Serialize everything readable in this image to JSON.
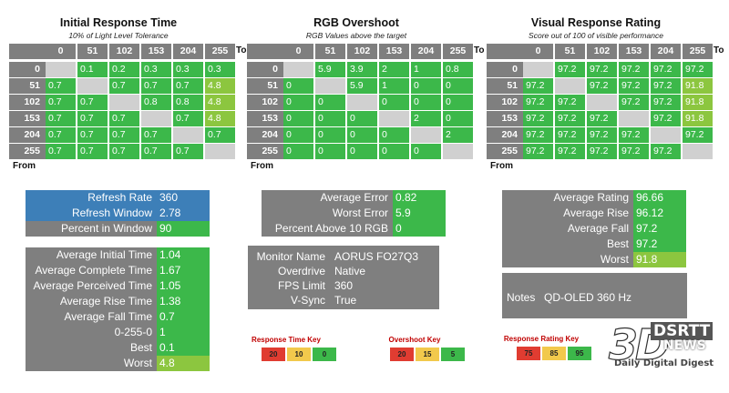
{
  "colors": {
    "header_gray": "#7f7f7f",
    "green": "#3cb84a",
    "lime": "#8cc63f",
    "empty": "#d0d0d0",
    "blue": "#3d7fb8",
    "panel_gray": "#7f7f7f",
    "key_red": "#e03c31",
    "key_yellow": "#f2c94c",
    "key_green": "#3cb84a"
  },
  "grids": [
    {
      "title": "Initial Response Time",
      "subtitle": "10% of Light Level Tolerance",
      "to_label": "To",
      "from_label": "From",
      "cols": [
        "0",
        "51",
        "102",
        "153",
        "204",
        "255"
      ],
      "rows": [
        "0",
        "51",
        "102",
        "153",
        "204",
        "255"
      ],
      "values": [
        [
          "",
          "0.1",
          "0.2",
          "0.3",
          "0.3",
          "0.3"
        ],
        [
          "0.7",
          "",
          "0.7",
          "0.7",
          "0.7",
          "4.8"
        ],
        [
          "0.7",
          "0.7",
          "",
          "0.8",
          "0.8",
          "4.8"
        ],
        [
          "0.7",
          "0.7",
          "0.7",
          "",
          "0.7",
          "4.8"
        ],
        [
          "0.7",
          "0.7",
          "0.7",
          "0.7",
          "",
          "0.7"
        ],
        [
          "0.7",
          "0.7",
          "0.7",
          "0.7",
          "0.7",
          ""
        ]
      ],
      "colors": [
        [
          "e",
          "g",
          "g",
          "g",
          "g",
          "g"
        ],
        [
          "g",
          "e",
          "g",
          "g",
          "g",
          "l"
        ],
        [
          "g",
          "g",
          "e",
          "g",
          "g",
          "l"
        ],
        [
          "g",
          "g",
          "g",
          "e",
          "g",
          "l"
        ],
        [
          "g",
          "g",
          "g",
          "g",
          "e",
          "g"
        ],
        [
          "g",
          "g",
          "g",
          "g",
          "g",
          "e"
        ]
      ]
    },
    {
      "title": "RGB Overshoot",
      "subtitle": "RGB Values above the target",
      "to_label": "To",
      "from_label": "From",
      "cols": [
        "0",
        "51",
        "102",
        "153",
        "204",
        "255"
      ],
      "rows": [
        "0",
        "51",
        "102",
        "153",
        "204",
        "255"
      ],
      "values": [
        [
          "",
          "5.9",
          "3.9",
          "2",
          "1",
          "0.8"
        ],
        [
          "0",
          "",
          "5.9",
          "1",
          "0",
          "0"
        ],
        [
          "0",
          "0",
          "",
          "0",
          "0",
          "0"
        ],
        [
          "0",
          "0",
          "0",
          "",
          "2",
          "0"
        ],
        [
          "0",
          "0",
          "0",
          "0",
          "",
          "2"
        ],
        [
          "0",
          "0",
          "0",
          "0",
          "0",
          ""
        ]
      ],
      "colors": [
        [
          "e",
          "g",
          "g",
          "g",
          "g",
          "g"
        ],
        [
          "g",
          "e",
          "g",
          "g",
          "g",
          "g"
        ],
        [
          "g",
          "g",
          "e",
          "g",
          "g",
          "g"
        ],
        [
          "g",
          "g",
          "g",
          "e",
          "g",
          "g"
        ],
        [
          "g",
          "g",
          "g",
          "g",
          "e",
          "g"
        ],
        [
          "g",
          "g",
          "g",
          "g",
          "g",
          "e"
        ]
      ]
    },
    {
      "title": "Visual Response Rating",
      "subtitle": "Score out of 100 of visible performance",
      "to_label": "To",
      "from_label": "From",
      "cols": [
        "0",
        "51",
        "102",
        "153",
        "204",
        "255"
      ],
      "rows": [
        "0",
        "51",
        "102",
        "153",
        "204",
        "255"
      ],
      "values": [
        [
          "",
          "97.2",
          "97.2",
          "97.2",
          "97.2",
          "97.2"
        ],
        [
          "97.2",
          "",
          "97.2",
          "97.2",
          "97.2",
          "91.8"
        ],
        [
          "97.2",
          "97.2",
          "",
          "97.2",
          "97.2",
          "91.8"
        ],
        [
          "97.2",
          "97.2",
          "97.2",
          "",
          "97.2",
          "91.8"
        ],
        [
          "97.2",
          "97.2",
          "97.2",
          "97.2",
          "",
          "97.2"
        ],
        [
          "97.2",
          "97.2",
          "97.2",
          "97.2",
          "97.2",
          ""
        ]
      ],
      "colors": [
        [
          "e",
          "g",
          "g",
          "g",
          "g",
          "g"
        ],
        [
          "g",
          "e",
          "g",
          "g",
          "g",
          "l"
        ],
        [
          "g",
          "g",
          "e",
          "g",
          "g",
          "l"
        ],
        [
          "g",
          "g",
          "g",
          "e",
          "g",
          "l"
        ],
        [
          "g",
          "g",
          "g",
          "g",
          "e",
          "g"
        ],
        [
          "g",
          "g",
          "g",
          "g",
          "g",
          "e"
        ]
      ]
    }
  ],
  "refresh_panel": [
    {
      "label": "Refresh Rate",
      "value": "360",
      "label_color": "blue",
      "value_color": "blue"
    },
    {
      "label": "Refresh Window",
      "value": "2.78",
      "label_color": "blue",
      "value_color": "blue"
    },
    {
      "label": "Percent in Window",
      "value": "90",
      "label_color": "gray",
      "value_color": "green"
    }
  ],
  "response_panel": [
    {
      "label": "Average Initial Time",
      "value": "1.04",
      "value_color": "green"
    },
    {
      "label": "Average Complete Time",
      "value": "1.67",
      "value_color": "green"
    },
    {
      "label": "Average Perceived Time",
      "value": "1.05",
      "value_color": "green"
    },
    {
      "label": "Average Rise Time",
      "value": "1.38",
      "value_color": "green"
    },
    {
      "label": "Average Fall Time",
      "value": "0.7",
      "value_color": "green"
    },
    {
      "label": "0-255-0",
      "value": "1",
      "value_color": "green"
    },
    {
      "label": "Best",
      "value": "0.1",
      "value_color": "green"
    },
    {
      "label": "Worst",
      "value": "4.8",
      "value_color": "lime"
    }
  ],
  "overshoot_panel": [
    {
      "label": "Average Error",
      "value": "0.82",
      "value_color": "green"
    },
    {
      "label": "Worst Error",
      "value": "5.9",
      "value_color": "green"
    },
    {
      "label": "Percent Above 10 RGB",
      "value": "0",
      "value_color": "green"
    }
  ],
  "monitor_panel": [
    {
      "label": "Monitor Name",
      "value": "AORUS FO27Q3"
    },
    {
      "label": "Overdrive",
      "value": "Native"
    },
    {
      "label": "FPS Limit",
      "value": "360"
    },
    {
      "label": "V-Sync",
      "value": "True"
    }
  ],
  "rating_panel": [
    {
      "label": "Average Rating",
      "value": "96.66",
      "value_color": "green"
    },
    {
      "label": "Average Rise",
      "value": "96.12",
      "value_color": "green"
    },
    {
      "label": "Average Fall",
      "value": "97.2",
      "value_color": "green"
    },
    {
      "label": "Best",
      "value": "97.2",
      "value_color": "green"
    },
    {
      "label": "Worst",
      "value": "91.8",
      "value_color": "lime"
    }
  ],
  "notes_panel": {
    "label": "Notes",
    "value": "QD-OLED 360 Hz"
  },
  "keys": [
    {
      "title": "Response Time Key",
      "values": [
        "20",
        "10",
        "0"
      ]
    },
    {
      "title": "Overshoot Key",
      "values": [
        "20",
        "15",
        "5"
      ]
    },
    {
      "title": "Response Rating Key",
      "values": [
        "75",
        "85",
        "95"
      ]
    }
  ],
  "logo": {
    "mark": "3D",
    "news_top": "DSRTT",
    "news_bottom": "NEWS",
    "tagline": "Daily Digital Digest"
  }
}
